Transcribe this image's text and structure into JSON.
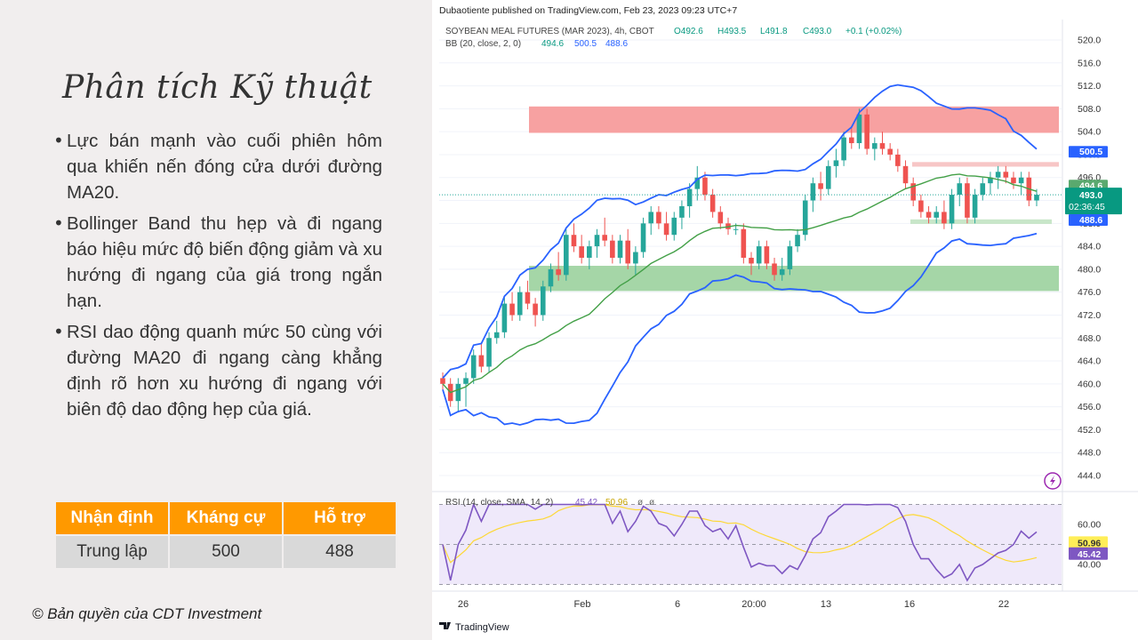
{
  "slide": {
    "title": "Phân tích Kỹ thuật",
    "bullets": [
      "Lực bán mạnh vào cuối phiên hôm qua khiến nến đóng cửa dưới đường MA20.",
      "Bollinger Band thu hẹp và đi ngang báo hiệu mức độ biến động giảm và xu hướng đi ngang của giá trong ngắn hạn.",
      "RSI dao động quanh mức 50 cùng với đường MA20 đi ngang càng khẳng định rõ hơn xu hướng đi ngang với biên độ dao động hẹp của giá."
    ],
    "bullet_char": "•",
    "table": {
      "headers": [
        "Nhận định",
        "Kháng cự",
        "Hỗ trợ"
      ],
      "row": [
        "Trung lập",
        "500",
        "488"
      ]
    },
    "copyright": "© Bản quyền của CDT Investment"
  },
  "chart": {
    "published_by": "Dubaotiente published on TradingView.com, Feb 23, 2023 09:23 UTC+7",
    "symbol_line": "SOYBEAN MEAL FUTURES (MAR 2023), 4h, CBOT",
    "ohlc": {
      "o": "O492.6",
      "h": "H493.5",
      "l": "L491.8",
      "c": "C493.0",
      "chg": "+0.1 (+0.02%)"
    },
    "bb_label": "BB (20, close, 2, 0)",
    "bb_values": [
      "494.6",
      "500.5",
      "488.6"
    ],
    "rsi_label": "RSI (14, close, SMA, 14, 2)",
    "rsi_values": [
      "45.42",
      "50.96",
      "ø",
      "ø"
    ],
    "price_labels": {
      "upper": "500.5",
      "basis": "494.6",
      "last": "493.0",
      "countdown": "02:36:45",
      "lower": "488.6"
    },
    "rsi_labels": {
      "ma": "50.96",
      "rsi": "45.42"
    },
    "x_ticks": [
      "26",
      "Feb",
      "6",
      "20:00",
      "13",
      "16",
      "22"
    ],
    "y_ticks": [
      "520.0",
      "516.0",
      "512.0",
      "508.0",
      "504.0",
      "500.0",
      "496.0",
      "492.0",
      "488.0",
      "484.0",
      "480.0",
      "476.0",
      "472.0",
      "468.0",
      "464.0",
      "460.0",
      "456.0",
      "452.0",
      "448.0",
      "444.0"
    ],
    "rsi_ticks": [
      "60.00",
      "40.00"
    ],
    "logo": "TradingView",
    "colors": {
      "up": "#26a69a",
      "down": "#ef5350",
      "bb": "#2962ff",
      "ma": "#43a047",
      "rsi": "#7e57c2",
      "rsi_ma": "#fdd835"
    }
  },
  "chart_data": {
    "type": "candlestick",
    "title": "SOYBEAN MEAL FUTURES (MAR 2023), 4h, CBOT",
    "ylim": [
      442,
      522
    ],
    "x_ticks": [
      "26",
      "Feb",
      "6",
      "20:00",
      "13",
      "16",
      "22"
    ],
    "zones": [
      {
        "type": "resistance",
        "from": 503.8,
        "to": 508.4,
        "color": "#f7a1a1"
      },
      {
        "type": "resistance-minor",
        "from": 497.9,
        "to": 498.7,
        "color": "#f7c6c6"
      },
      {
        "type": "support-minor",
        "from": 487.9,
        "to": 488.7,
        "color": "#c8e6c9"
      },
      {
        "type": "support",
        "from": 476.2,
        "to": 480.6,
        "color": "#a5d6a7"
      }
    ],
    "candles": [
      [
        461,
        462,
        459,
        460
      ],
      [
        460,
        461,
        456,
        457
      ],
      [
        457,
        461,
        455,
        460
      ],
      [
        460,
        462,
        456,
        461
      ],
      [
        461,
        466,
        460,
        465
      ],
      [
        465,
        467,
        462,
        463
      ],
      [
        463,
        469,
        462,
        468
      ],
      [
        468,
        471,
        467,
        469
      ],
      [
        469,
        475,
        468,
        474
      ],
      [
        474,
        476,
        471,
        472
      ],
      [
        472,
        477,
        471,
        476
      ],
      [
        476,
        478,
        473,
        474
      ],
      [
        474,
        475,
        470,
        472
      ],
      [
        472,
        478,
        471,
        477
      ],
      [
        477,
        481,
        476,
        480
      ],
      [
        480,
        483,
        478,
        479
      ],
      [
        479,
        487,
        478,
        486
      ],
      [
        486,
        488,
        483,
        484
      ],
      [
        484,
        486,
        481,
        482
      ],
      [
        482,
        485,
        480,
        484
      ],
      [
        484,
        487,
        482,
        486
      ],
      [
        486,
        489,
        484,
        485
      ],
      [
        485,
        486,
        481,
        482
      ],
      [
        482,
        486,
        481,
        485
      ],
      [
        485,
        487,
        480,
        481
      ],
      [
        481,
        484,
        479,
        483
      ],
      [
        483,
        489,
        482,
        488
      ],
      [
        488,
        491,
        486,
        490
      ],
      [
        490,
        491,
        487,
        488
      ],
      [
        488,
        490,
        485,
        486
      ],
      [
        486,
        490,
        485,
        489
      ],
      [
        489,
        492,
        487,
        491
      ],
      [
        491,
        495,
        489,
        494
      ],
      [
        494,
        498,
        492,
        496
      ],
      [
        496,
        497,
        492,
        493
      ],
      [
        493,
        494,
        489,
        490
      ],
      [
        490,
        491,
        487,
        488
      ],
      [
        488,
        489,
        486,
        487
      ],
      [
        487,
        488,
        486,
        487
      ],
      [
        487,
        488,
        481,
        482
      ],
      [
        482,
        483,
        479,
        481
      ],
      [
        481,
        485,
        480,
        484
      ],
      [
        484,
        485,
        480,
        481
      ],
      [
        481,
        482,
        478,
        479
      ],
      [
        479,
        482,
        478,
        480
      ],
      [
        480,
        485,
        479,
        484
      ],
      [
        484,
        487,
        483,
        486
      ],
      [
        486,
        493,
        485,
        492
      ],
      [
        492,
        496,
        490,
        495
      ],
      [
        495,
        497,
        492,
        494
      ],
      [
        494,
        499,
        493,
        498
      ],
      [
        498,
        501,
        496,
        499
      ],
      [
        499,
        504,
        498,
        503
      ],
      [
        503,
        505,
        501,
        502
      ],
      [
        502,
        508,
        501,
        507
      ],
      [
        507,
        508,
        500,
        501
      ],
      [
        501,
        503,
        499,
        502
      ],
      [
        502,
        504,
        500,
        501
      ],
      [
        501,
        502,
        499,
        500
      ],
      [
        500,
        501,
        497,
        498
      ],
      [
        498,
        499,
        494,
        495
      ],
      [
        495,
        496,
        491,
        492
      ],
      [
        492,
        493,
        489,
        490
      ],
      [
        490,
        491,
        488,
        489
      ],
      [
        489,
        491,
        488,
        490
      ],
      [
        490,
        492,
        487,
        488
      ],
      [
        488,
        494,
        487,
        493
      ],
      [
        493,
        496,
        491,
        495
      ],
      [
        495,
        496,
        488,
        489
      ],
      [
        489,
        494,
        488,
        493
      ],
      [
        493,
        496,
        492,
        495
      ],
      [
        495,
        497,
        493,
        496
      ],
      [
        496,
        498,
        494,
        497
      ],
      [
        497,
        498,
        495,
        496
      ],
      [
        496,
        497,
        494,
        495
      ],
      [
        495,
        497,
        493,
        496
      ],
      [
        496,
        497,
        491,
        492
      ],
      [
        492,
        494,
        491,
        493
      ]
    ],
    "series": [
      {
        "name": "BB (20, close, 2, 0)"
      },
      {
        "name": "RSI (14, close, SMA, 14, 2)",
        "ylim": [
          20,
          80
        ],
        "levels": [
          70,
          50,
          30
        ]
      }
    ],
    "last": {
      "close": 493.0,
      "bb_upper": 500.5,
      "bb_basis": 494.6,
      "bb_lower": 488.6,
      "rsi": 45.42,
      "rsi_ma": 50.96
    }
  }
}
